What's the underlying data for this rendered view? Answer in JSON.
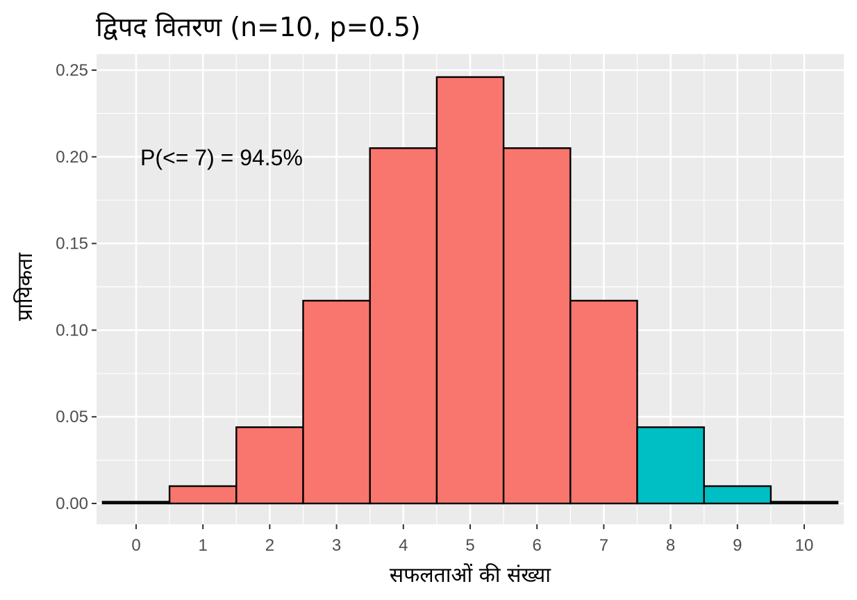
{
  "chart_data": {
    "type": "bar",
    "title": "द्विपद वितरण (n=10, p=0.5)",
    "xlabel": "सफलताओं की संख्या",
    "ylabel": "प्रायिकता",
    "x": [
      0,
      1,
      2,
      3,
      4,
      5,
      6,
      7,
      8,
      9,
      10
    ],
    "x_tick_labels": [
      "0",
      "1",
      "2",
      "3",
      "4",
      "5",
      "6",
      "7",
      "8",
      "9",
      "10"
    ],
    "values": [
      0.001,
      0.01,
      0.044,
      0.117,
      0.205,
      0.246,
      0.205,
      0.117,
      0.044,
      0.01,
      0.001
    ],
    "highlight_threshold": 7,
    "xlim": [
      -0.5,
      10.5
    ],
    "ylim": [
      0,
      0.25
    ],
    "y_ticks": [
      0.0,
      0.05,
      0.1,
      0.15,
      0.2,
      0.25
    ],
    "y_tick_labels": [
      "0.00",
      "0.05",
      "0.10",
      "0.15",
      "0.20",
      "0.25"
    ],
    "annotation": "P(<= 7) = 94.5%",
    "grid": true,
    "colors": {
      "panel_background": "#ebebeb",
      "grid_line": "#ffffff",
      "bar_low": "#f8766d",
      "bar_high": "#00bfc4",
      "bar_outline": "#000000"
    }
  }
}
